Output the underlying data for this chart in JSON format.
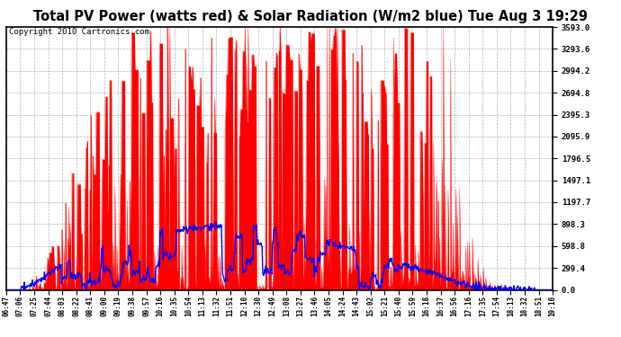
{
  "title": "Total PV Power (watts red) & Solar Radiation (W/m2 blue) Tue Aug 3 19:29",
  "copyright": "Copyright 2010 Cartronics.com",
  "yticks": [
    0.0,
    299.4,
    598.8,
    898.3,
    1197.7,
    1497.1,
    1796.5,
    2095.9,
    2395.3,
    2694.8,
    2994.2,
    3293.6,
    3593.0
  ],
  "ylim": [
    0,
    3593.0
  ],
  "xtick_labels": [
    "06:47",
    "07:06",
    "07:25",
    "07:44",
    "08:03",
    "08:22",
    "08:41",
    "09:00",
    "09:19",
    "09:38",
    "09:57",
    "10:16",
    "10:35",
    "10:54",
    "11:13",
    "11:32",
    "11:51",
    "12:10",
    "12:30",
    "12:49",
    "13:08",
    "13:27",
    "13:46",
    "14:05",
    "14:24",
    "14:43",
    "15:02",
    "15:21",
    "15:40",
    "15:59",
    "16:18",
    "16:37",
    "16:56",
    "17:16",
    "17:35",
    "17:54",
    "18:13",
    "18:32",
    "18:51",
    "19:10"
  ],
  "bg_color": "#ffffff",
  "plot_bg_color": "#ffffff",
  "grid_color": "#aaaaaa",
  "pv_color": "red",
  "solar_color": "blue",
  "title_fontsize": 10.5,
  "copyright_fontsize": 6.5,
  "fig_width": 6.9,
  "fig_height": 3.75,
  "dpi": 100
}
